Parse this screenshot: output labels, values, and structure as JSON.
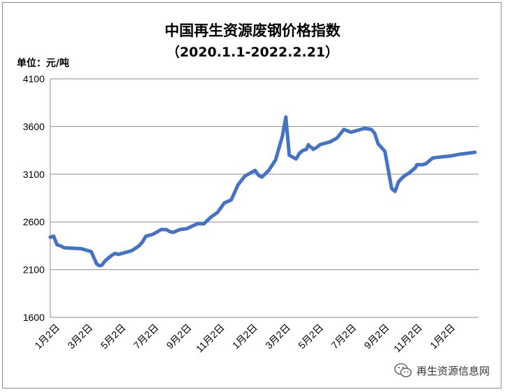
{
  "chart_data": {
    "type": "line",
    "title": "中国再生资源废钢价格指数",
    "subtitle": "（2020.1.1-2022.2.21）",
    "ylabel": "单位：元/吨",
    "xlabel": "",
    "ylim": [
      1600,
      4100
    ],
    "yticks": [
      1600,
      2100,
      2600,
      3100,
      3600,
      4100
    ],
    "grid": true,
    "legend": "none",
    "line_color": "#4472c4",
    "xticks": [
      "1月2日",
      "3月2日",
      "5月2日",
      "7月2日",
      "9月2日",
      "11月2日",
      "1月2日",
      "3月2日",
      "5月2日",
      "7月2日",
      "9月2日",
      "11月2日",
      "1月2日"
    ],
    "series": [
      {
        "x": [
          0,
          5,
          10,
          15,
          20,
          30,
          45,
          60,
          68,
          70,
          73,
          76,
          80,
          85,
          90,
          95,
          100,
          110,
          120,
          130,
          135,
          140,
          150,
          160,
          162,
          170,
          175,
          180,
          190,
          200,
          215,
          225,
          235,
          245,
          255,
          265,
          275,
          285,
          300,
          305,
          310,
          320,
          330,
          340,
          345,
          350,
          360,
          365,
          370,
          375,
          378,
          380,
          383,
          385,
          390,
          395,
          400,
          405,
          410,
          415,
          420,
          430,
          440,
          450,
          460,
          470,
          475,
          480,
          490,
          500,
          505,
          510,
          515,
          520,
          525,
          530,
          535,
          537,
          540,
          545,
          550,
          560,
          570,
          585,
          600,
          622
        ],
        "values": [
          2440,
          2450,
          2360,
          2350,
          2330,
          2325,
          2320,
          2290,
          2160,
          2150,
          2140,
          2150,
          2190,
          2220,
          2250,
          2270,
          2260,
          2280,
          2300,
          2350,
          2390,
          2450,
          2470,
          2510,
          2520,
          2520,
          2500,
          2490,
          2520,
          2530,
          2580,
          2580,
          2650,
          2700,
          2800,
          2830,
          2990,
          3080,
          3140,
          3090,
          3070,
          3140,
          3250,
          3500,
          3700,
          3300,
          3260,
          3320,
          3350,
          3360,
          3410,
          3390,
          3380,
          3360,
          3380,
          3410,
          3420,
          3430,
          3440,
          3460,
          3480,
          3570,
          3540,
          3560,
          3580,
          3570,
          3530,
          3420,
          3340,
          2950,
          2920,
          3020,
          3060,
          3090,
          3110,
          3140,
          3170,
          3200,
          3200,
          3200,
          3210,
          3270,
          3280,
          3290,
          3310,
          3330
        ]
      }
    ]
  },
  "watermark": {
    "text": "再生资源信息网",
    "icon": "wechat-icon"
  }
}
